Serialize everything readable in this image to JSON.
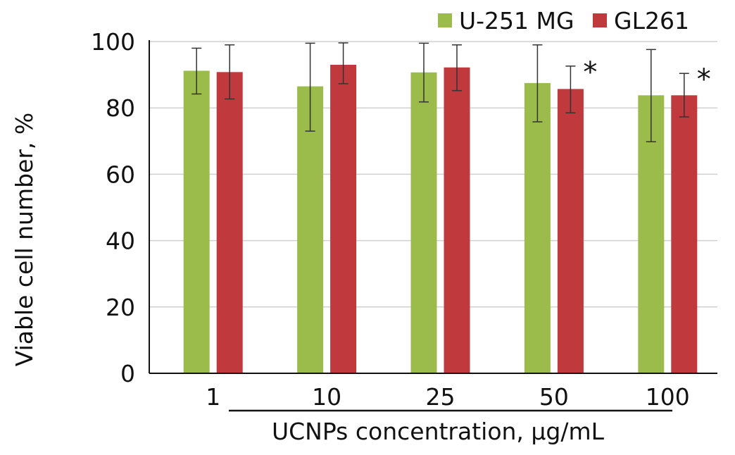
{
  "chart_data": {
    "type": "bar",
    "xlabel": "UCNPs concentration, μg/mL",
    "ylabel": "Viable cell number, %",
    "categories": [
      "1",
      "10",
      "25",
      "50",
      "100"
    ],
    "series": [
      {
        "name": "U-251 MG",
        "color": "#9BBB4B",
        "values": [
          91.2,
          86.5,
          90.7,
          87.5,
          83.8
        ],
        "error_low": [
          84.2,
          73.0,
          81.8,
          75.8,
          69.8
        ],
        "error_high": [
          98.0,
          99.5,
          99.5,
          99.0,
          97.6
        ]
      },
      {
        "name": "GL261",
        "color": "#C0393D",
        "values": [
          90.8,
          93.0,
          92.2,
          85.7,
          83.8
        ],
        "error_low": [
          82.7,
          87.3,
          85.2,
          78.5,
          77.3
        ],
        "error_high": [
          99.0,
          99.6,
          99.0,
          92.6,
          90.4
        ]
      }
    ],
    "significance": [
      {
        "category": "50",
        "series": "GL261",
        "mark": "*"
      },
      {
        "category": "100",
        "series": "GL261",
        "mark": "*"
      }
    ],
    "ylim": [
      0,
      100
    ],
    "yticks": [
      0,
      20,
      40,
      60,
      80,
      100
    ],
    "grid": true,
    "legend_position": "top-right"
  }
}
